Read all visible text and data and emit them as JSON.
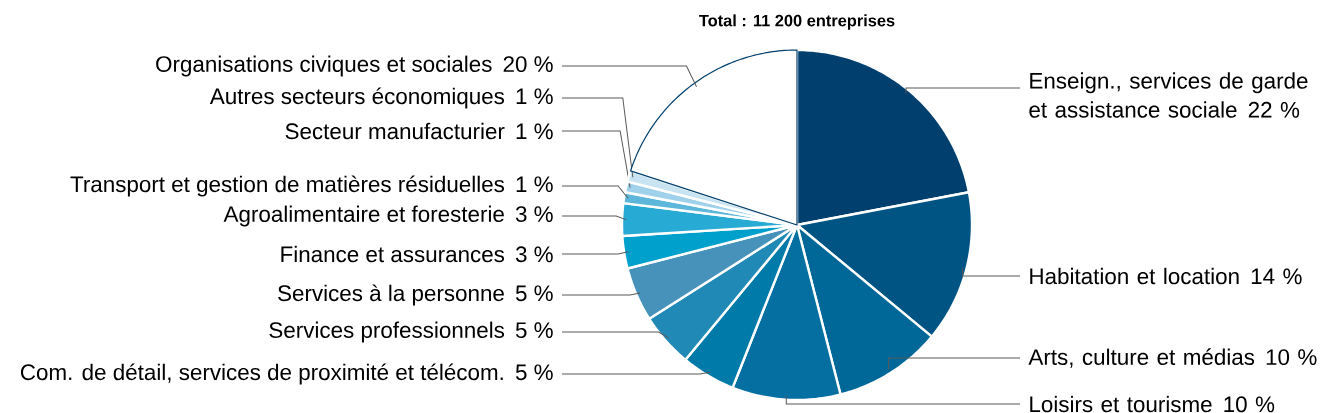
{
  "chart_data": {
    "type": "pie",
    "title": "Total : 11 200 entreprises",
    "categories": [
      "Enseign., services de garde et assistance sociale",
      "Habitation et location",
      "Arts, culture et médias",
      "Loisirs et tourisme",
      "Com. de détail, services de proximité et télécom.",
      "Services professionnels",
      "Services à la personne",
      "Finance et assurances",
      "Agroalimentaire et foresterie",
      "Transport et gestion de matières résiduelles",
      "Secteur manufacturier",
      "Autres secteurs économiques",
      "Organisations civiques et sociales"
    ],
    "values": [
      22,
      14,
      10,
      10,
      5,
      5,
      5,
      3,
      3,
      1,
      1,
      1,
      20
    ],
    "value_labels": [
      "22 %",
      "14 %",
      "10 %",
      "10 %",
      "5 %",
      "5 %",
      "5 %",
      "3 %",
      "3 %",
      "1 %",
      "1 %",
      "1 %",
      "20 %"
    ],
    "colors": [
      "#003f6e",
      "#005483",
      "#006899",
      "#046fa0",
      "#007aa8",
      "#2189b5",
      "#4792ba",
      "#00a0cc",
      "#27aad3",
      "#5db7da",
      "#9fd2ea",
      "#c8e4f2",
      "#ffffff"
    ]
  }
}
